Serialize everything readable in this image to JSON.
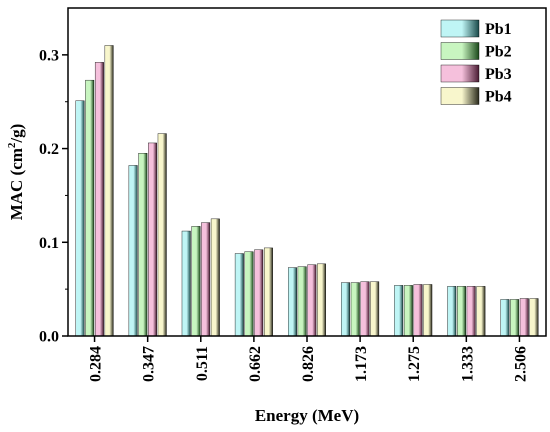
{
  "chart_data": {
    "type": "bar",
    "xlabel": "Energy (MeV)",
    "ylabel_main": "MAC (cm",
    "ylabel_sup": "2",
    "ylabel_tail": "/g)",
    "categories": [
      "0.284",
      "0.347",
      "0.511",
      "0.662",
      "0.826",
      "1.173",
      "1.275",
      "1.333",
      "2.506"
    ],
    "ylim": [
      0,
      0.35
    ],
    "yticks": [
      "0.0",
      "0.1",
      "0.2",
      "0.3"
    ],
    "ytick_values": [
      0,
      0.1,
      0.2,
      0.3
    ],
    "grid": false,
    "legend_position": "top-right",
    "series": [
      {
        "name": "Pb1",
        "color_light": "#bff5f5",
        "color_dark": "#1a4a4a",
        "values": [
          0.251,
          0.182,
          0.112,
          0.088,
          0.073,
          0.057,
          0.054,
          0.053,
          0.039
        ]
      },
      {
        "name": "Pb2",
        "color_light": "#c8f5c0",
        "color_dark": "#1c4a1c",
        "values": [
          0.273,
          0.195,
          0.117,
          0.09,
          0.074,
          0.057,
          0.054,
          0.053,
          0.039
        ]
      },
      {
        "name": "Pb3",
        "color_light": "#f5c0dc",
        "color_dark": "#4a1c33",
        "values": [
          0.292,
          0.206,
          0.121,
          0.092,
          0.076,
          0.058,
          0.055,
          0.053,
          0.04
        ]
      },
      {
        "name": "Pb4",
        "color_light": "#f8f6cc",
        "color_dark": "#2a2a1c",
        "values": [
          0.31,
          0.216,
          0.125,
          0.094,
          0.077,
          0.058,
          0.055,
          0.053,
          0.04
        ]
      }
    ]
  }
}
